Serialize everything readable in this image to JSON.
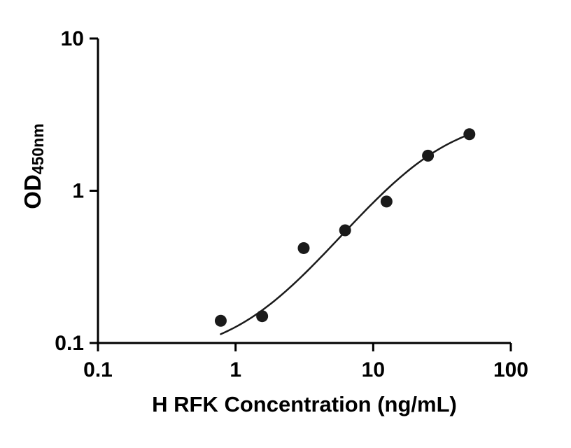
{
  "figure": {
    "background": "#ffffff",
    "axis_color": "#000000",
    "point_color": "#1a1a1a",
    "curve_color": "#1a1a1a"
  },
  "chart_data": {
    "type": "scatter",
    "title": "",
    "xlabel": "H RFK Concentration (ng/mL)",
    "ylabel": "OD",
    "ylabel_sub": "450nm",
    "x_scale": "log",
    "y_scale": "log",
    "xlim": [
      0.1,
      100
    ],
    "ylim": [
      0.1,
      10
    ],
    "x_ticks": [
      0.1,
      1,
      10,
      100
    ],
    "x_tick_labels": [
      "0.1",
      "1",
      "10",
      "100"
    ],
    "y_ticks": [
      10,
      1,
      0.1
    ],
    "y_tick_labels": [
      "10",
      "1",
      "0.1"
    ],
    "grid": false,
    "legend": false,
    "points": {
      "x": [
        0.78,
        1.56,
        3.125,
        6.25,
        12.5,
        25,
        50
      ],
      "y": [
        0.14,
        0.15,
        0.42,
        0.55,
        0.85,
        1.7,
        2.35
      ]
    },
    "fit": {
      "model": "4PL",
      "bottom": 0.08,
      "top": 3.2,
      "ec50": 23.8,
      "hill": 1.316,
      "x_range": [
        0.78,
        50
      ]
    }
  }
}
